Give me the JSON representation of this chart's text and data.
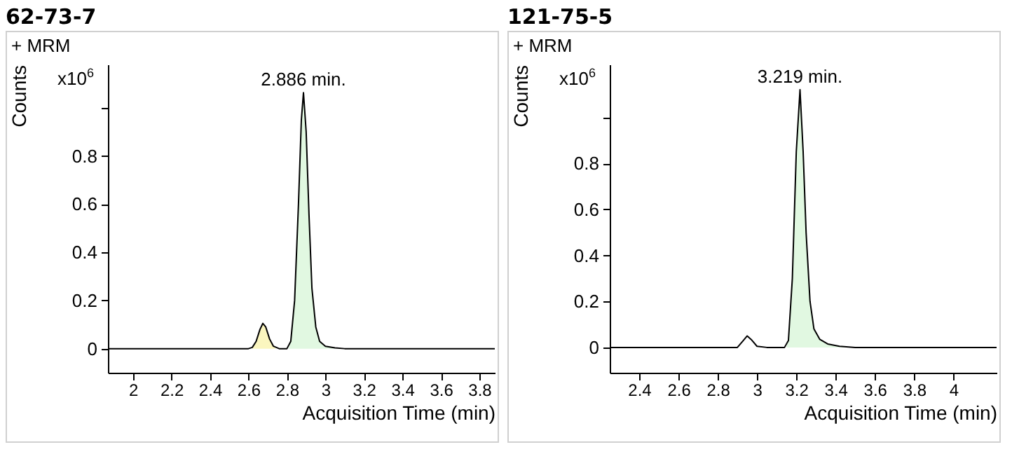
{
  "chart_data": [
    {
      "type": "line",
      "title": "62-73-7",
      "xlabel": "Acquisition Time (min)",
      "ylabel": "Counts",
      "annotations": [
        "+ MRM",
        "x10$^{6}$",
        {
          "text": "2.886 min.",
          "x": 2.886,
          "y": 1.063
        }
      ],
      "series": [
        {
          "type": "area",
          "color": "#fbf6bf",
          "x": [
            2.62,
            2.64,
            2.66,
            2.675,
            2.69,
            2.71,
            2.73,
            2.74
          ],
          "values": [
            0.005,
            0.03,
            0.08,
            0.105,
            0.09,
            0.04,
            0.01,
            0.004
          ]
        },
        {
          "type": "area",
          "color": "#e1f8e1",
          "x": [
            2.81,
            2.82,
            2.84,
            2.86,
            2.875,
            2.886,
            2.9,
            2.915,
            2.93,
            2.95,
            2.97,
            3.0,
            3.05
          ],
          "values": [
            0.005,
            0.03,
            0.2,
            0.6,
            0.95,
            1.063,
            0.9,
            0.55,
            0.25,
            0.09,
            0.03,
            0.01,
            0.003
          ]
        },
        {
          "color": "#000000",
          "x": [
            1.87,
            2.6,
            2.62,
            2.64,
            2.66,
            2.675,
            2.69,
            2.71,
            2.73,
            2.76,
            2.8,
            2.82,
            2.84,
            2.86,
            2.875,
            2.886,
            2.9,
            2.915,
            2.93,
            2.95,
            2.97,
            3.0,
            3.05,
            3.1,
            3.88
          ],
          "values": [
            0,
            0,
            0.005,
            0.03,
            0.08,
            0.105,
            0.09,
            0.04,
            0.01,
            0,
            0,
            0.03,
            0.2,
            0.6,
            0.95,
            1.063,
            0.9,
            0.55,
            0.25,
            0.09,
            0.03,
            0.01,
            0.003,
            0,
            0
          ]
        }
      ],
      "xlim": [
        1.87,
        3.88
      ],
      "xticks": [
        2,
        2.2,
        2.4,
        2.6,
        2.8,
        3,
        3.2,
        3.4,
        3.6,
        3.8
      ],
      "ylim": [
        -0.1,
        1.18
      ],
      "yticks": [
        0,
        0.2,
        0.4,
        0.6,
        0.8,
        {
          "value": 1,
          "label": null
        }
      ]
    },
    {
      "type": "line",
      "title": "121-75-5",
      "xlabel": "Acquisition Time (min)",
      "ylabel": "Counts",
      "annotations": [
        "+ MRM",
        "x10$^{6}$",
        {
          "text": "3.219 min.",
          "x": 3.219,
          "y": 1.12
        }
      ],
      "series": [
        {
          "type": "area",
          "color": "#e1f8e1",
          "x": [
            3.15,
            3.16,
            3.18,
            3.2,
            3.219,
            3.235,
            3.25,
            3.27,
            3.29,
            3.32,
            3.36,
            3.42,
            3.45
          ],
          "values": [
            0.005,
            0.03,
            0.3,
            0.85,
            1.12,
            0.85,
            0.5,
            0.2,
            0.08,
            0.035,
            0.015,
            0.005,
            0.003
          ]
        },
        {
          "color": "#000000",
          "x": [
            2.25,
            2.9,
            2.93,
            2.95,
            2.97,
            3.0,
            3.05,
            3.14,
            3.16,
            3.18,
            3.2,
            3.219,
            3.235,
            3.25,
            3.27,
            3.29,
            3.32,
            3.36,
            3.42,
            3.5,
            4.22
          ],
          "values": [
            0,
            0,
            0.03,
            0.05,
            0.035,
            0.005,
            0,
            0,
            0.03,
            0.3,
            0.85,
            1.12,
            0.85,
            0.5,
            0.2,
            0.08,
            0.035,
            0.015,
            0.005,
            0,
            0
          ]
        }
      ],
      "xlim": [
        2.25,
        4.22
      ],
      "xticks": [
        2.4,
        2.6,
        2.8,
        3,
        3.2,
        3.4,
        3.6,
        3.8,
        4
      ],
      "ylim": [
        -0.11,
        1.23
      ],
      "yticks": [
        0,
        0.2,
        0.4,
        0.6,
        0.8,
        {
          "value": 1,
          "label": null
        }
      ]
    }
  ]
}
